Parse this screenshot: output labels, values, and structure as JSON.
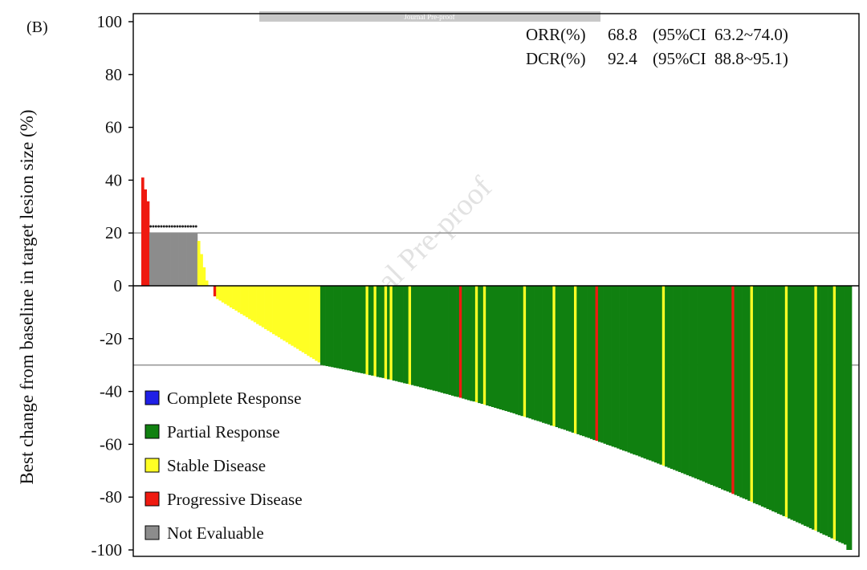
{
  "panel_label": "(B)",
  "banner": "Journal Pre-proof",
  "watermark": "Journal Pre-proof",
  "stats": {
    "orr": {
      "label": "ORR(%)",
      "value": "68.8",
      "ci": "(95%CI  63.2~74.0)"
    },
    "dcr": {
      "label": "DCR(%)",
      "value": "92.4",
      "ci": "(95%CI  88.8~95.1)"
    }
  },
  "colors": {
    "CR": "#1f1fe6",
    "PR": "#108010",
    "SD": "#ffff24",
    "PD": "#ef1a10",
    "NE": "#8c8c8c"
  },
  "chart_data": {
    "type": "bar",
    "title": "",
    "xlabel": "",
    "ylabel": "Best change from baseline in target lesion size (%)",
    "ylim": [
      -103,
      100
    ],
    "yticks": [
      100,
      80,
      60,
      40,
      20,
      0,
      -20,
      -40,
      -60,
      -80,
      -100
    ],
    "reference_lines": [
      20,
      -30
    ],
    "legend_position": "bottom-left",
    "legend": [
      {
        "key": "CR",
        "label": "Complete Response"
      },
      {
        "key": "PR",
        "label": "Partial Response"
      },
      {
        "key": "SD",
        "label": "Stable Disease"
      },
      {
        "key": "PD",
        "label": "Progressive Disease"
      },
      {
        "key": "NE",
        "label": "Not Evaluable"
      }
    ],
    "n_patients": 266,
    "ne_marker_value": 22.5,
    "ne_count": 18,
    "ne_value": 20,
    "segments": [
      {
        "response": "PD",
        "from": 41,
        "to": 32,
        "count": 3
      },
      {
        "response": "NE",
        "from": 20,
        "to": 20,
        "count": 18
      },
      {
        "response": "SD",
        "from": 17,
        "to": 2,
        "count": 4
      },
      {
        "response": "SD",
        "from": 0,
        "to": 0,
        "count": 2
      },
      {
        "response": "PD",
        "from": -4,
        "to": -4,
        "count": 1
      },
      {
        "response": "SD",
        "from": -5,
        "to": -29,
        "count": 39
      },
      {
        "response": "PR",
        "from": -30,
        "to": -99,
        "count": 199,
        "end_value": -100
      }
    ],
    "exceptions": [
      {
        "index": 84,
        "response": "SD"
      },
      {
        "index": 87,
        "response": "SD"
      },
      {
        "index": 91,
        "response": "SD"
      },
      {
        "index": 93,
        "response": "SD"
      },
      {
        "index": 100,
        "response": "SD"
      },
      {
        "index": 119,
        "response": "PD"
      },
      {
        "index": 125,
        "response": "SD"
      },
      {
        "index": 128,
        "response": "SD"
      },
      {
        "index": 143,
        "response": "SD"
      },
      {
        "index": 154,
        "response": "SD"
      },
      {
        "index": 162,
        "response": "SD"
      },
      {
        "index": 170,
        "response": "PD"
      },
      {
        "index": 195,
        "response": "SD"
      },
      {
        "index": 221,
        "response": "PD"
      },
      {
        "index": 228,
        "response": "SD"
      },
      {
        "index": 241,
        "response": "SD"
      },
      {
        "index": 252,
        "response": "SD"
      },
      {
        "index": 259,
        "response": "SD"
      }
    ]
  }
}
